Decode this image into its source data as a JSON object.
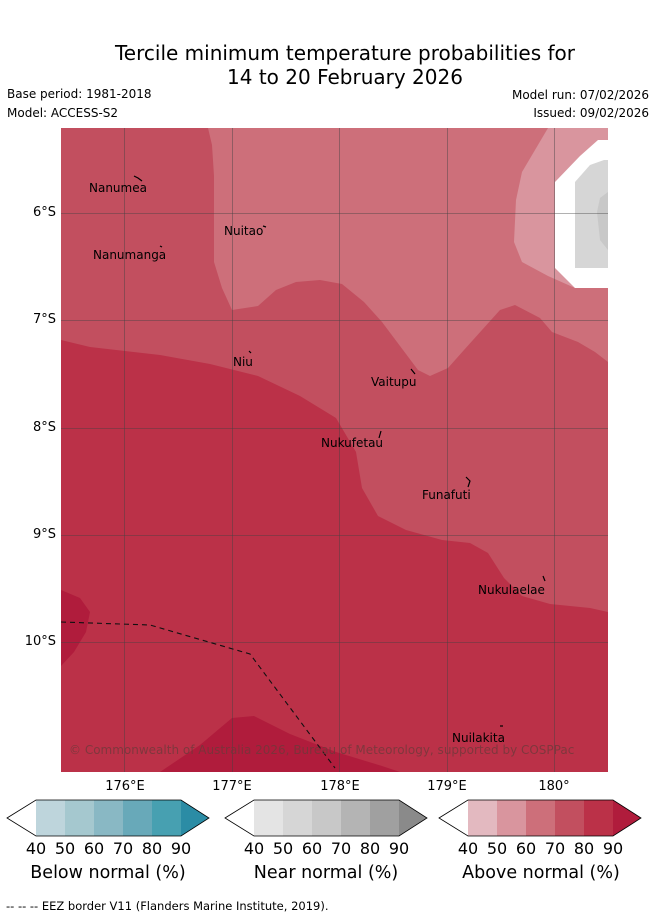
{
  "title_line1": "Tercile minimum temperature probabilities for",
  "title_line2": "14 to 20 February 2026",
  "base_period": "Base period: 1981-2018",
  "model": "Model: ACCESS-S2",
  "model_run": "Model run: 07/02/2026",
  "issued": "Issued: 09/02/2026",
  "y_axis_labels": [
    "6°S",
    "7°S",
    "8°S",
    "9°S",
    "10°S"
  ],
  "x_axis_labels": [
    "176°E",
    "177°E",
    "178°E",
    "179°E",
    "180°"
  ],
  "places": [
    "Nanumea",
    "Nuitao",
    "Nanumanga",
    "Niu",
    "Vaitupu",
    "Nukufetau",
    "Funafuti",
    "Nukulaelae",
    "Nuilakita"
  ],
  "copyright": "© Commonwealth of Australia 2026, Bureau of Meteorology, supported by COSPPac",
  "colorbars": [
    {
      "title": "Below normal (%)",
      "ticks": [
        "40",
        "50",
        "60",
        "70",
        "80",
        "90"
      ],
      "colors": [
        "#ffffff",
        "#bed5dc",
        "#a5c8cf",
        "#89b8c4",
        "#68a9b9",
        "#47a0b1",
        "#2b8ca5"
      ]
    },
    {
      "title": "Near normal (%)",
      "ticks": [
        "40",
        "50",
        "60",
        "70",
        "80",
        "90"
      ],
      "colors": [
        "#ffffff",
        "#e4e4e4",
        "#d6d6d6",
        "#c8c8c8",
        "#b4b4b4",
        "#a0a0a0",
        "#8a8a8a"
      ]
    },
    {
      "title": "Above normal (%)",
      "ticks": [
        "40",
        "50",
        "60",
        "70",
        "80",
        "90"
      ],
      "colors": [
        "#ffffff",
        "#e3b9c0",
        "#d9959e",
        "#cd6f7a",
        "#c24f5f",
        "#bb3148",
        "#b01c3c"
      ]
    }
  ],
  "footer": "--  --  -- EEZ border V11 (Flanders Marine Institute, 2019)."
}
